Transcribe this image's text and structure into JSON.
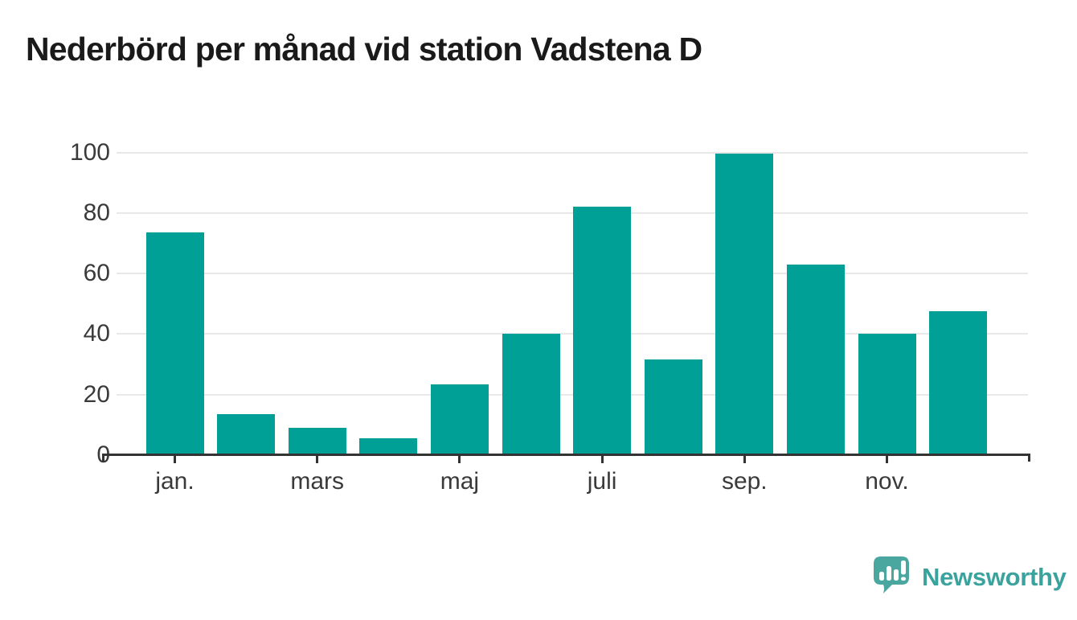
{
  "title": "Nederbörd per månad vid station Vadstena D",
  "chart_data": {
    "type": "bar",
    "title": "Nederbörd per månad vid station Vadstena D",
    "n_bars": 12,
    "values": [
      73.5,
      13.5,
      9,
      5.5,
      23.5,
      40,
      82,
      31.5,
      99.5,
      63,
      40,
      47.5
    ],
    "x_tick_labels": [
      "jan.",
      "mars",
      "maj",
      "juli",
      "sep.",
      "nov."
    ],
    "x_tick_bar_indexes": [
      0,
      2,
      4,
      6,
      8,
      10
    ],
    "y_ticks": [
      0,
      20,
      40,
      60,
      80,
      100
    ],
    "ylim": [
      0,
      100
    ],
    "grid": "horizontal-only",
    "legend": "none",
    "colors": {
      "bar": "#00a096",
      "axis": "#333333",
      "grid": "#e8e8e8",
      "tick_label": "#3a3a3a",
      "title": "#1a1a1a"
    }
  },
  "branding": {
    "logo_text": "Newsworthy",
    "logo_text_color": "#3aa39e",
    "logo_mark": "speech-bubble-with-bar-chart-and-exclamation-icon",
    "logo_mark_color": "#4aa7a0",
    "logo_mark_glyph_color": "#ffffff"
  }
}
